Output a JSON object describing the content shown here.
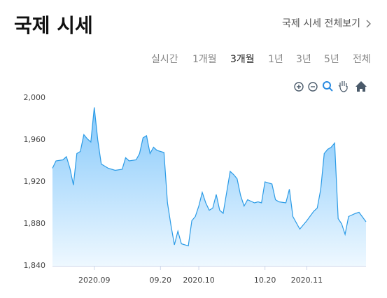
{
  "header": {
    "title": "국제 시세",
    "link": "국제 시세 전체보기"
  },
  "tabs": [
    "실시간",
    "1개월",
    "3개월",
    "1년",
    "3년",
    "5년",
    "전체"
  ],
  "selected_tab": 2,
  "chart_data": {
    "type": "area",
    "x": [
      0,
      1,
      3,
      4,
      5,
      6,
      7,
      8,
      9,
      10,
      11,
      12,
      13,
      14,
      15,
      16,
      18,
      20,
      21,
      22,
      24,
      25,
      26,
      27,
      28,
      29,
      30,
      32,
      33,
      34,
      35,
      36,
      37,
      39,
      40,
      41,
      42,
      43,
      44,
      45,
      46,
      47,
      48,
      49,
      51,
      52,
      53,
      54,
      55,
      56,
      58,
      59,
      60,
      61,
      63,
      64,
      65,
      67,
      68,
      69,
      71,
      72,
      73,
      75,
      76,
      77,
      78,
      79,
      80,
      81,
      82,
      83,
      84,
      85,
      87,
      88,
      90
    ],
    "series": [
      {
        "color": "#2b9be6",
        "values": [
          1933,
          1940,
          1941,
          1944,
          1933,
          1917,
          1947,
          1949,
          1965,
          1961,
          1958,
          1991,
          1960,
          1937,
          1935,
          1933,
          1931,
          1932,
          1943,
          1940,
          1941,
          1947,
          1962,
          1964,
          1947,
          1953,
          1950,
          1948,
          1900,
          1879,
          1860,
          1873,
          1861,
          1859,
          1883,
          1887,
          1897,
          1910,
          1900,
          1893,
          1895,
          1908,
          1893,
          1890,
          1930,
          1927,
          1923,
          1907,
          1897,
          1903,
          1900,
          1901,
          1900,
          1920,
          1918,
          1903,
          1901,
          1900,
          1913,
          1887,
          1875,
          1879,
          1883,
          1892,
          1895,
          1913,
          1947,
          1951,
          1953,
          1957,
          1885,
          1880,
          1870,
          1887,
          1890,
          1891,
          1882
        ]
      }
    ],
    "xlim": [
      0,
      90
    ],
    "xticks": [
      {
        "value": 12,
        "label": "2020.09"
      },
      {
        "value": 31,
        "label": "09.20"
      },
      {
        "value": 42,
        "label": "2020.10"
      },
      {
        "value": 61,
        "label": "10.20"
      },
      {
        "value": 73,
        "label": "2020.11"
      }
    ],
    "ylim": [
      1840,
      2000
    ],
    "yticks": [
      {
        "value": 1840,
        "label": "1,840"
      },
      {
        "value": 1880,
        "label": "1,880"
      },
      {
        "value": 1920,
        "label": "1,920"
      },
      {
        "value": 1960,
        "label": "1,960"
      },
      {
        "value": 2000,
        "label": "2,000"
      }
    ]
  }
}
